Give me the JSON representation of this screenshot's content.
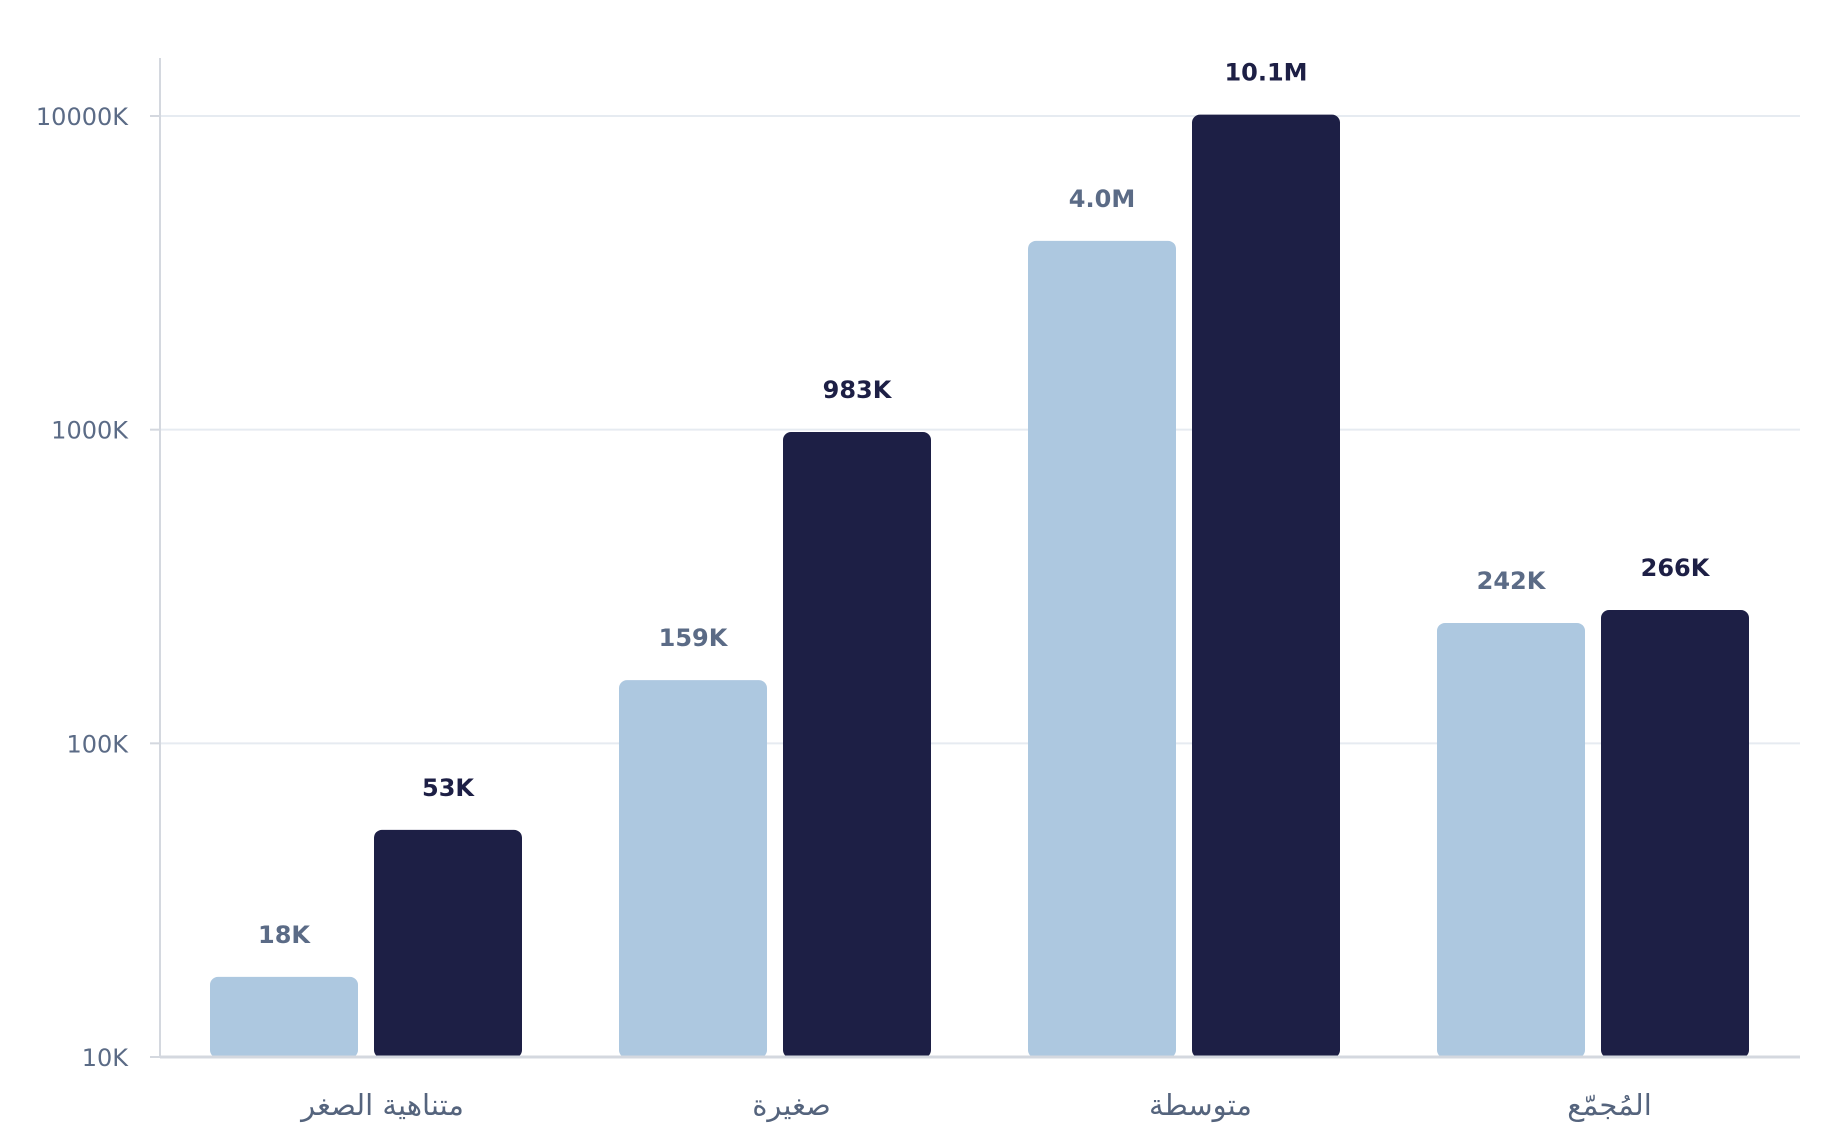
{
  "chart_data": {
    "type": "bar",
    "y_scale": "log",
    "ylim": [
      10000,
      10000000
    ],
    "y_ticks": [
      {
        "value": 10000,
        "label": "10K"
      },
      {
        "value": 100000,
        "label": "100K"
      },
      {
        "value": 1000000,
        "label": "1000K"
      },
      {
        "value": 10000000,
        "label": "10000K"
      }
    ],
    "categories": [
      "متناهية الصغر",
      "صغيرة",
      "متوسطة",
      "المُجمّع"
    ],
    "series": [
      {
        "color": "#adc8e0",
        "label_color": "#5b6b86",
        "values": [
          18000,
          159000,
          4000000,
          242000
        ],
        "labels": [
          "18K",
          "159K",
          "4.0M",
          "242K"
        ]
      },
      {
        "color": "#1d1f45",
        "label_color": "#1d1f45",
        "values": [
          53000,
          983000,
          10100000,
          266000
        ],
        "labels": [
          "53K",
          "983K",
          "10.1M",
          "266K"
        ]
      }
    ],
    "grid": true,
    "legend": "none",
    "axis_color": "#d4d8df",
    "grid_color": "#e6ebf1"
  }
}
